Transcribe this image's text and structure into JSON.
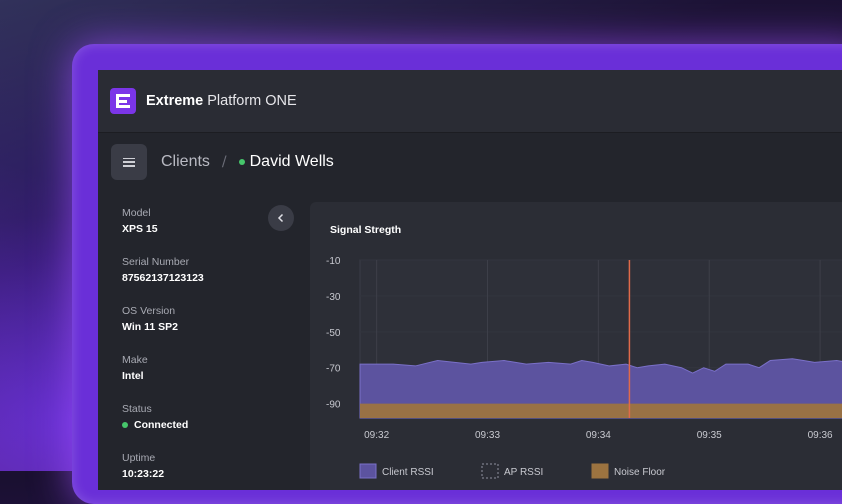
{
  "app": {
    "brand_bold": "Extreme",
    "brand_light": "Platform ONE"
  },
  "breadcrumb": {
    "parent": "Clients",
    "separator": "/",
    "current": "David Wells",
    "status_color": "#46c66b"
  },
  "details": [
    {
      "label": "Model",
      "value": "XPS 15"
    },
    {
      "label": "Serial Number",
      "value": "87562137123123"
    },
    {
      "label": "OS Version",
      "value": "Win 11 SP2"
    },
    {
      "label": "Make",
      "value": "Intel"
    },
    {
      "label": "Status",
      "value": "Connected",
      "status": true
    },
    {
      "label": "Uptime",
      "value": "10:23:22"
    }
  ],
  "colors": {
    "accent": "#7b35e8",
    "connected": "#46c66b",
    "client_rssi": "#6b5fb8",
    "noise_floor": "#a9783a",
    "cursor": "#e06a4a"
  },
  "chart_data": {
    "type": "area",
    "title": "Signal Stregth",
    "y_ticks": [
      -10,
      -30,
      -50,
      -70,
      -90
    ],
    "ylim": [
      -98,
      -10
    ],
    "x_ticks": [
      "09:32",
      "09:33",
      "09:34",
      "09:35",
      "09:36"
    ],
    "cursor_time": "09:34.4",
    "legend": [
      "Client RSSI",
      "AP RSSI",
      "Noise Floor"
    ],
    "series": [
      {
        "name": "Client RSSI",
        "x": [
          0,
          0.3,
          0.5,
          0.7,
          1.0,
          1.1,
          1.3,
          1.5,
          1.7,
          1.9,
          2.0,
          2.1,
          2.25,
          2.4,
          2.5,
          2.6,
          2.75,
          2.9,
          3.0,
          3.1,
          3.2,
          3.3,
          3.5,
          3.6,
          3.7,
          3.9,
          4.0,
          4.1,
          4.3,
          4.4,
          4.6
        ],
        "y": [
          -68,
          -68,
          -69,
          -66,
          -68,
          -67,
          -66,
          -68,
          -67,
          -68,
          -66,
          -67,
          -69,
          -68,
          -70,
          -69,
          -68,
          -70,
          -73,
          -70,
          -72,
          -68,
          -68,
          -70,
          -66,
          -65,
          -66,
          -67,
          -66,
          -67,
          -67
        ]
      },
      {
        "name": "Noise Floor",
        "x": [
          0,
          0.5,
          1.0,
          1.5,
          2.0,
          2.5,
          3.0,
          3.5,
          4.0,
          4.6
        ],
        "y": [
          -90,
          -90,
          -90,
          -90,
          -90,
          -90,
          -90,
          -90,
          -90,
          -90
        ]
      }
    ]
  }
}
